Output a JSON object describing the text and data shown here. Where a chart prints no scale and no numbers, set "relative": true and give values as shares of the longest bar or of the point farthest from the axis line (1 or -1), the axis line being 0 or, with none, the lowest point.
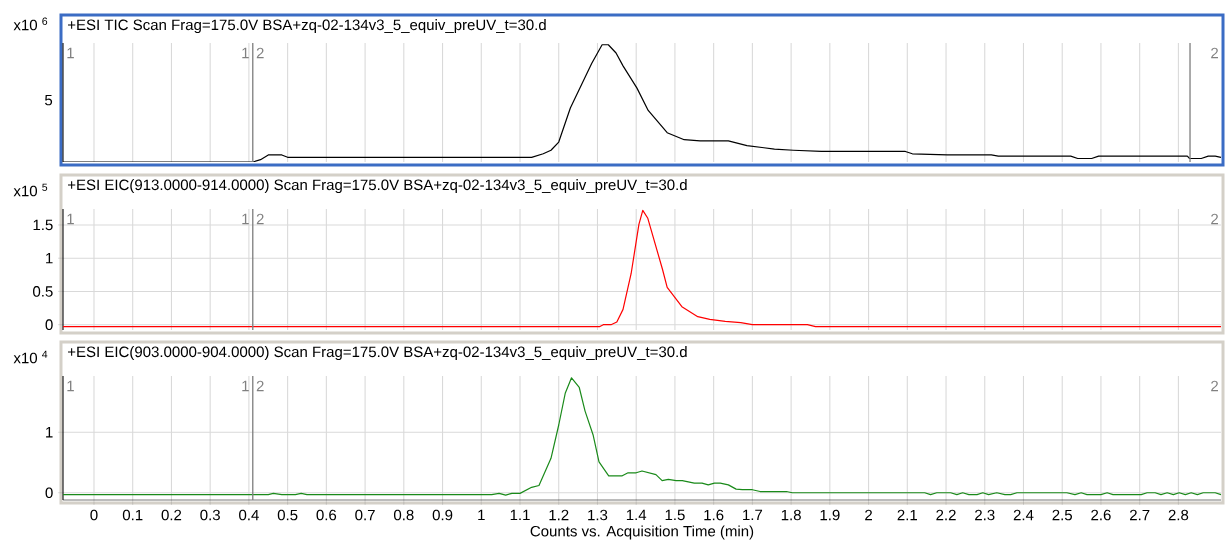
{
  "chart_data": [
    {
      "type": "line",
      "title": "+ESI TIC Scan Frag=175.0V BSA+zq-02-134v3_5_equiv_preUV_t=30.d",
      "ylabel": "x10 $^{6}$",
      "relative": true,
      "color": "#000000",
      "grid": "x",
      "tick_labels": false,
      "x": [
        -0.08,
        0.41,
        0.43,
        0.45,
        0.485,
        0.5,
        1.13,
        1.16,
        1.18,
        1.2,
        1.23,
        1.285,
        1.312,
        1.328,
        1.348,
        1.366,
        1.402,
        1.431,
        1.48,
        1.524,
        1.565,
        1.638,
        1.686,
        1.757,
        1.806,
        1.878,
        2.095,
        2.113,
        2.203,
        2.317,
        2.335,
        2.522,
        2.54,
        2.576,
        2.594,
        2.823,
        2.829,
        2.859,
        2.877,
        2.895,
        2.91
      ],
      "values": [
        0,
        0,
        0.02,
        0.06,
        0.06,
        0.04,
        0.04,
        0.07,
        0.1,
        0.17,
        0.46,
        0.84,
        1,
        1,
        0.93,
        0.82,
        0.63,
        0.44,
        0.25,
        0.19,
        0.18,
        0.18,
        0.14,
        0.11,
        0.1,
        0.09,
        0.09,
        0.07,
        0.06,
        0.06,
        0.05,
        0.05,
        0.03,
        0.03,
        0.05,
        0.05,
        0.03,
        0.03,
        0.05,
        0.05,
        0.04
      ],
      "xlim": [
        -0.08,
        2.91
      ],
      "xticks": [
        0,
        0.1,
        0.2,
        0.3,
        0.4,
        0.5,
        0.6,
        0.7,
        0.8,
        0.9,
        1,
        1.1,
        1.2,
        1.3,
        1.4,
        1.5,
        1.6,
        1.7,
        1.8,
        1.9,
        2,
        2.1,
        2.2,
        2.3,
        2.4,
        2.5,
        2.6,
        2.7,
        2.8
      ],
      "ref_lines": [
        {
          "axis": "x",
          "value": 0.41,
          "color": "#808080"
        },
        {
          "axis": "x",
          "value": 2.83,
          "color": "#808080"
        }
      ],
      "annotations": [
        "5",
        "1",
        "1",
        "2",
        "2"
      ]
    },
    {
      "type": "line",
      "title": "+ESI EIC(913.0000-914.0000) Scan Frag=175.0V BSA+zq-02-134v3_5_equiv_preUV_t=30.d",
      "ylabel": "x10 $^{5}$",
      "color": "#ff0000",
      "grid": true,
      "tick_labels": "y",
      "x": [
        -0.08,
        1.305,
        1.315,
        1.335,
        1.35,
        1.366,
        1.387,
        1.407,
        1.417,
        1.43,
        1.468,
        1.48,
        1.518,
        1.559,
        1.59,
        1.63,
        1.67,
        1.7,
        1.842,
        1.863,
        2.91
      ],
      "values": [
        -0.03,
        -0.03,
        0,
        0,
        0.04,
        0.23,
        0.77,
        1.51,
        1.72,
        1.6,
        0.83,
        0.56,
        0.27,
        0.12,
        0.08,
        0.05,
        0.03,
        0,
        0,
        -0.03,
        -0.03
      ],
      "xlim": [
        -0.08,
        2.91
      ],
      "ylim": [
        -0.08,
        1.74
      ],
      "xticks": [
        0,
        0.1,
        0.2,
        0.3,
        0.4,
        0.5,
        0.6,
        0.7,
        0.8,
        0.9,
        1,
        1.1,
        1.2,
        1.3,
        1.4,
        1.5,
        1.6,
        1.7,
        1.8,
        1.9,
        2,
        2.1,
        2.2,
        2.3,
        2.4,
        2.5,
        2.6,
        2.7,
        2.8
      ],
      "yticks": [
        0,
        0.5,
        1,
        1.5
      ],
      "ref_lines": [
        {
          "axis": "x",
          "value": 0.41,
          "color": "#808080"
        }
      ],
      "annotations": [
        "1",
        "1",
        "2",
        "2"
      ]
    },
    {
      "type": "line",
      "title": "+ESI EIC(903.0000-904.0000) Scan Frag=175.0V BSA+zq-02-134v3_5_equiv_preUV_t=30.d",
      "ylabel": "x10 $^{4}$",
      "xlabel": "Counts vs. Acquisition Time (min)",
      "color": "#1a8a1a",
      "grid": true,
      "x": [
        -0.08,
        0.45,
        0.463,
        0.485,
        0.52,
        0.535,
        0.55,
        1.027,
        1.046,
        1.063,
        1.079,
        1.1,
        1.13,
        1.149,
        1.18,
        1.2,
        1.217,
        1.233,
        1.253,
        1.268,
        1.289,
        1.304,
        1.329,
        1.364,
        1.379,
        1.4,
        1.415,
        1.451,
        1.467,
        1.483,
        1.503,
        1.519,
        1.55,
        1.57,
        1.586,
        1.602,
        1.617,
        1.638,
        1.658,
        1.674,
        1.7,
        1.72,
        1.788,
        1.803,
        2.145,
        2.16,
        2.176,
        2.212,
        2.228,
        2.243,
        2.259,
        2.28,
        2.295,
        2.31,
        2.331,
        2.352,
        2.367,
        2.383,
        2.512,
        2.533,
        2.549,
        2.564,
        2.6,
        2.616,
        2.631,
        2.704,
        2.719,
        2.74,
        2.755,
        2.771,
        2.787,
        2.802,
        2.818,
        2.833,
        2.849,
        2.864,
        2.895,
        2.91
      ],
      "values": [
        -0.03,
        -0.03,
        -0.01,
        -0.03,
        -0.03,
        -0.01,
        -0.03,
        -0.03,
        -0.01,
        -0.04,
        -0.01,
        -0.01,
        0.09,
        0.12,
        0.57,
        1.12,
        1.65,
        1.9,
        1.74,
        1.35,
        0.95,
        0.51,
        0.28,
        0.28,
        0.33,
        0.33,
        0.36,
        0.3,
        0.2,
        0.22,
        0.2,
        0.2,
        0.16,
        0.16,
        0.13,
        0.16,
        0.16,
        0.13,
        0.06,
        0.05,
        0.05,
        0.02,
        0.02,
        0,
        0,
        -0.03,
        0,
        0,
        -0.03,
        0,
        -0.03,
        -0.03,
        0,
        -0.03,
        0,
        -0.03,
        -0.03,
        0,
        0,
        -0.03,
        0,
        -0.03,
        -0.03,
        0,
        -0.03,
        -0.03,
        0,
        0,
        -0.03,
        0,
        -0.03,
        0,
        -0.03,
        0,
        -0.03,
        0,
        0,
        -0.03
      ],
      "xlim": [
        -0.08,
        2.91
      ],
      "ylim": [
        -0.12,
        1.93
      ],
      "xticks": [
        0,
        0.1,
        0.2,
        0.3,
        0.4,
        0.5,
        0.6,
        0.7,
        0.8,
        0.9,
        1,
        1.1,
        1.2,
        1.3,
        1.4,
        1.5,
        1.6,
        1.7,
        1.8,
        1.9,
        2,
        2.1,
        2.2,
        2.3,
        2.4,
        2.5,
        2.6,
        2.7,
        2.8
      ],
      "yticks": [
        0,
        1
      ],
      "ref_lines": [
        {
          "axis": "x",
          "value": 0.41,
          "color": "#808080"
        }
      ],
      "annotations": [
        "1",
        "1",
        "2",
        "2"
      ]
    }
  ]
}
